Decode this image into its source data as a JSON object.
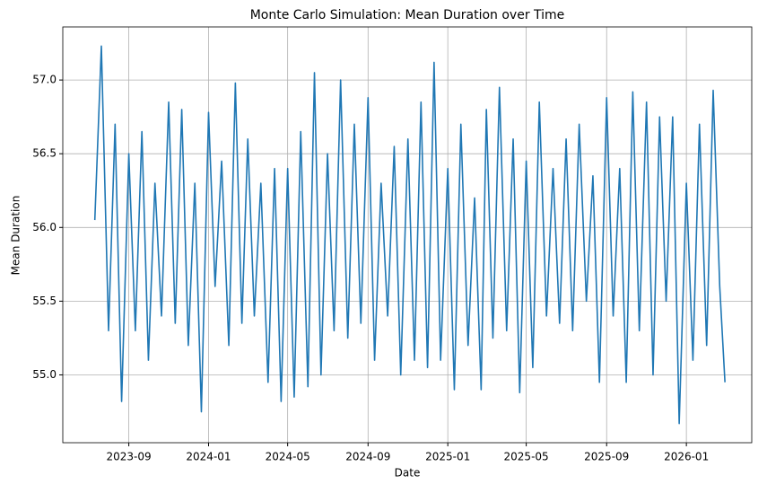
{
  "chart_data": {
    "type": "line",
    "title": "Monte Carlo Simulation: Mean Duration over Time",
    "xlabel": "Date",
    "ylabel": "Mean Duration",
    "x": [
      "2023-07-11",
      "2023-07-21",
      "2023-08-01",
      "2023-08-11",
      "2023-08-21",
      "2023-09-01",
      "2023-09-11",
      "2023-09-21",
      "2023-10-01",
      "2023-10-11",
      "2023-10-21",
      "2023-11-01",
      "2023-11-11",
      "2023-11-21",
      "2023-12-01",
      "2023-12-11",
      "2023-12-21",
      "2024-01-01",
      "2024-01-11",
      "2024-01-21",
      "2024-02-01",
      "2024-02-11",
      "2024-02-21",
      "2024-03-01",
      "2024-03-11",
      "2024-03-21",
      "2024-04-01",
      "2024-04-11",
      "2024-04-21",
      "2024-05-01",
      "2024-05-11",
      "2024-05-21",
      "2024-06-01",
      "2024-06-11",
      "2024-06-21",
      "2024-07-01",
      "2024-07-11",
      "2024-07-21",
      "2024-08-01",
      "2024-08-11",
      "2024-08-21",
      "2024-09-01",
      "2024-09-11",
      "2024-09-21",
      "2024-10-01",
      "2024-10-11",
      "2024-10-21",
      "2024-11-01",
      "2024-11-11",
      "2024-11-21",
      "2024-12-01",
      "2024-12-11",
      "2024-12-21",
      "2025-01-01",
      "2025-01-11",
      "2025-01-21",
      "2025-02-01",
      "2025-02-11",
      "2025-02-21",
      "2025-03-01",
      "2025-03-11",
      "2025-03-21",
      "2025-04-01",
      "2025-04-11",
      "2025-04-21",
      "2025-05-01",
      "2025-05-11",
      "2025-05-21",
      "2025-06-01",
      "2025-06-11",
      "2025-06-21",
      "2025-07-01",
      "2025-07-11",
      "2025-07-21",
      "2025-08-01",
      "2025-08-11",
      "2025-08-21",
      "2025-09-01",
      "2025-09-11",
      "2025-09-21",
      "2025-10-01",
      "2025-10-11",
      "2025-10-21",
      "2025-11-01",
      "2025-11-11",
      "2025-11-21",
      "2025-12-01",
      "2025-12-11",
      "2025-12-21",
      "2026-01-01",
      "2026-01-11",
      "2026-01-21",
      "2026-02-01",
      "2026-02-11",
      "2026-02-21",
      "2026-03-01"
    ],
    "series": [
      {
        "name": "Mean Duration",
        "color": "#1f77b4",
        "values": [
          56.05,
          57.23,
          55.3,
          56.7,
          54.82,
          56.5,
          55.3,
          56.65,
          55.1,
          56.3,
          55.4,
          56.85,
          55.35,
          56.8,
          55.2,
          56.3,
          54.75,
          56.78,
          55.6,
          56.45,
          55.2,
          56.98,
          55.35,
          56.6,
          55.4,
          56.3,
          54.95,
          56.4,
          54.82,
          56.4,
          54.85,
          56.65,
          54.92,
          57.05,
          55.0,
          56.5,
          55.3,
          57.0,
          55.25,
          56.7,
          55.35,
          56.88,
          55.1,
          56.3,
          55.4,
          56.55,
          55.0,
          56.6,
          55.1,
          56.85,
          55.05,
          57.12,
          55.1,
          56.4,
          54.9,
          56.7,
          55.2,
          56.2,
          54.9,
          56.8,
          55.25,
          56.95,
          55.3,
          56.6,
          54.88,
          56.45,
          55.05,
          56.85,
          55.4,
          56.4,
          55.35,
          56.6,
          55.3,
          56.7,
          55.5,
          56.35,
          54.95,
          56.88,
          55.4,
          56.4,
          54.95,
          56.92,
          55.3,
          56.85,
          55.0,
          56.75,
          55.5,
          56.75,
          54.67,
          56.3,
          55.1,
          56.7,
          55.2,
          56.93,
          55.6,
          54.95
        ]
      }
    ],
    "xlim": [
      "2023-05-23",
      "2026-04-11"
    ],
    "xticks": [
      {
        "value": "2023-09-01",
        "label": "2023-09"
      },
      {
        "value": "2024-01-01",
        "label": "2024-01"
      },
      {
        "value": "2024-05-01",
        "label": "2024-05"
      },
      {
        "value": "2024-09-01",
        "label": "2024-09"
      },
      {
        "value": "2025-01-01",
        "label": "2025-01"
      },
      {
        "value": "2025-05-01",
        "label": "2025-05"
      },
      {
        "value": "2025-09-01",
        "label": "2025-09"
      },
      {
        "value": "2026-01-01",
        "label": "2026-01"
      }
    ],
    "ylim": [
      54.54,
      57.36
    ],
    "yticks": [
      {
        "value": 55,
        "label": "55.0"
      },
      55.5,
      {
        "value": 56,
        "label": "56.0"
      },
      56.5,
      {
        "value": 57,
        "label": "57.0"
      }
    ],
    "grid": true
  }
}
